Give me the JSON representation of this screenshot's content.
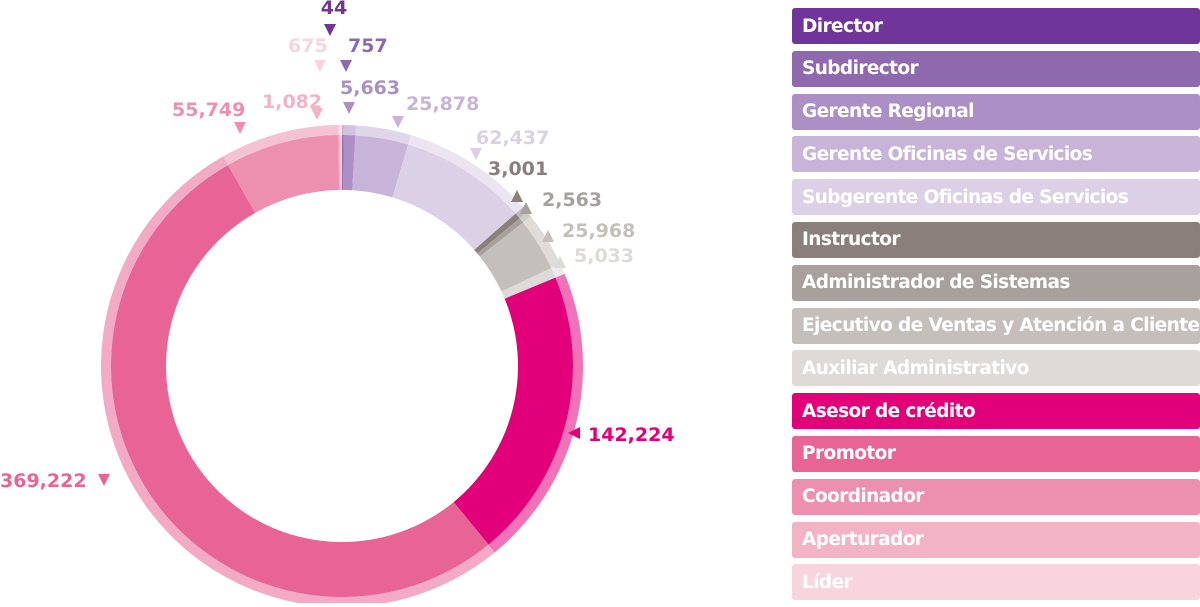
{
  "chart_data": {
    "type": "pie",
    "categories": [
      "Director",
      "Subdirector",
      "Gerente Regional",
      "Gerente Oficinas de Servicios",
      "Subgerente Oficinas de Servicios",
      "Instructor",
      "Administrador de Sistemas",
      "Ejecutivo de Ventas y Atención a Clientes",
      "Auxiliar Administrativo",
      "Asesor de crédito",
      "Promotor",
      "Coordinador",
      "Aperturador",
      "Líder"
    ],
    "values": [
      44,
      757,
      5663,
      25878,
      62437,
      3001,
      2563,
      25968,
      5033,
      142224,
      369222,
      55749,
      1082,
      675
    ],
    "value_labels": [
      "44",
      "757",
      "5,663",
      "25,878",
      "62,437",
      "3,001",
      "2,563",
      "25,968",
      "5,033",
      "142,224",
      "369,222",
      "55,749",
      "1,082",
      "675"
    ],
    "colors": [
      "#70359a",
      "#8e69ad",
      "#ac90c5",
      "#c7b4d8",
      "#dcd0e6",
      "#8a7f7b",
      "#a8a09d",
      "#c5bfbc",
      "#dddad8",
      "#e2007a",
      "#e76495",
      "#ed8fae",
      "#f3b3c7",
      "#f8d4de"
    ],
    "legend_position": "right"
  }
}
